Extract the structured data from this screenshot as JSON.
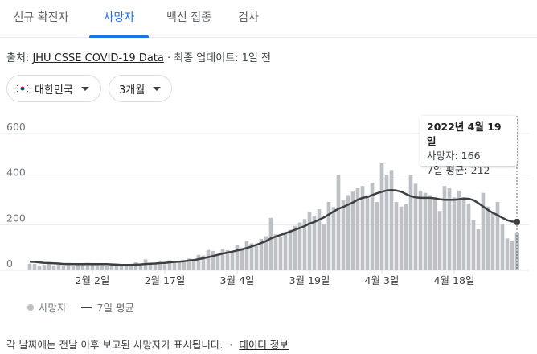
{
  "tabs": [
    {
      "label": "신규 확진자",
      "active": false
    },
    {
      "label": "사망자",
      "active": true
    },
    {
      "label": "백신 접종",
      "active": false
    },
    {
      "label": "검사",
      "active": false
    }
  ],
  "source": {
    "prefix": "출처: ",
    "link": "JHU CSSE COVID-19 Data",
    "suffix": " · 최종 업데이트: 1일 전"
  },
  "filters": {
    "region": "대한민국",
    "period": "3개월"
  },
  "tooltip": {
    "date": "2022년 4월 19일",
    "deaths_line": "사망자: 166",
    "avg_line": "7일 평균: 212"
  },
  "legend": {
    "deaths": "사망자",
    "avg": "7일 평균"
  },
  "footer": {
    "note": "각 날짜에는 전날 이후 보고된 사망자가 표시됩니다.",
    "sep": "·",
    "link": "데이터 정보"
  },
  "colors": {
    "accent": "#1a73e8",
    "bar": "#bdc1c6",
    "line": "#3c4043"
  },
  "chart_data": {
    "type": "bar",
    "title": "",
    "xlabel": "",
    "ylabel": "",
    "ylim": [
      0,
      600
    ],
    "yticks": [
      0,
      200,
      400,
      600
    ],
    "x_start_date": "2022-01-20",
    "x_tick_labels": [
      "2월 2일",
      "2월 17일",
      "3월 4일",
      "3월 19일",
      "4월 3일",
      "4월 18일"
    ],
    "x_tick_days": [
      13,
      28,
      43,
      58,
      73,
      88
    ],
    "series": [
      {
        "name": "사망자",
        "type": "bar",
        "values": [
          29,
          28,
          20,
          24,
          31,
          22,
          26,
          20,
          30,
          18,
          25,
          29,
          22,
          27,
          28,
          22,
          20,
          26,
          21,
          24,
          23,
          21,
          35,
          30,
          48,
          30,
          28,
          36,
          27,
          44,
          40,
          34,
          45,
          52,
          48,
          68,
          65,
          90,
          85,
          70,
          95,
          88,
          78,
          112,
          100,
          130,
          118,
          108,
          138,
          150,
          230,
          158,
          148,
          170,
          178,
          195,
          210,
          225,
          255,
          240,
          268,
          205,
          300,
          278,
          420,
          310,
          330,
          345,
          360,
          370,
          330,
          385,
          300,
          470,
          420,
          440,
          300,
          280,
          290,
          420,
          380,
          350,
          340,
          330,
          320,
          260,
          370,
          360,
          320,
          350,
          320,
          290,
          220,
          180,
          340,
          280,
          250,
          300,
          200,
          140,
          130,
          166
        ]
      },
      {
        "name": "7일 평균",
        "type": "line",
        "values": [
          38,
          37,
          35,
          33,
          32,
          31,
          30,
          28,
          28,
          27,
          27,
          27,
          28,
          27,
          27,
          27,
          27,
          26,
          25,
          24,
          24,
          24,
          25,
          26,
          28,
          29,
          30,
          32,
          33,
          35,
          37,
          38,
          40,
          43,
          45,
          49,
          53,
          58,
          63,
          68,
          73,
          78,
          82,
          87,
          91,
          98,
          105,
          112,
          120,
          128,
          140,
          148,
          155,
          162,
          170,
          178,
          186,
          194,
          205,
          212,
          222,
          232,
          245,
          258,
          270,
          278,
          288,
          298,
          310,
          318,
          322,
          330,
          338,
          345,
          350,
          352,
          350,
          345,
          335,
          325,
          320,
          318,
          318,
          318,
          316,
          312,
          310,
          310,
          310,
          312,
          315,
          314,
          308,
          295,
          280,
          265,
          252,
          242,
          230,
          220,
          214,
          212
        ]
      }
    ],
    "highlight": {
      "index": 101,
      "date": "2022-04-19"
    },
    "legend_position": "bottom-left",
    "grid": true
  }
}
